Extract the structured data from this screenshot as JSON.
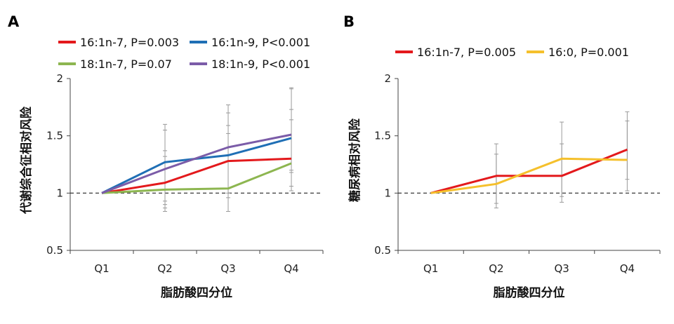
{
  "chart_data": [
    {
      "type": "line",
      "panel_label": "A",
      "categories": [
        "Q1",
        "Q2",
        "Q3",
        "Q4"
      ],
      "xlabel": "脂肪酸四分位",
      "ylabel": "代谢综合征相对风险",
      "ylim": [
        0.5,
        2
      ],
      "yticks": [
        "0.5",
        "1",
        "1.5",
        "2"
      ],
      "reference_line": 1,
      "grid": false,
      "legend_position": "top",
      "series": [
        {
          "name": "16:1n-7, P=0.003",
          "color": "#e3191c",
          "values": [
            1,
            1.09,
            1.28,
            1.3
          ]
        },
        {
          "name": "16:1n-9, P<0.001",
          "color": "#1f6fb5",
          "values": [
            1,
            1.27,
            1.33,
            1.48
          ]
        },
        {
          "name": "18:1n-7, P=0.07",
          "color": "#8db650",
          "values": [
            1,
            1.03,
            1.04,
            1.26
          ]
        },
        {
          "name": "18:1n-9, P<0.001",
          "color": "#7b5ca8",
          "values": [
            1,
            1.21,
            1.4,
            1.51
          ]
        }
      ],
      "error_bars": [
        {
          "x": "Q2",
          "low": [
            0.84,
            0.87,
            0.9,
            0.93
          ],
          "high": [
            1.6,
            1.55,
            1.37,
            1.32
          ]
        },
        {
          "x": "Q3",
          "low": [
            0.84,
            0.96,
            1.0,
            1.04
          ],
          "high": [
            1.77,
            1.7,
            1.59,
            1.52
          ]
        },
        {
          "x": "Q4",
          "low": [
            1.02,
            1.06,
            1.18,
            1.2
          ],
          "high": [
            1.92,
            1.91,
            1.73,
            1.64
          ]
        }
      ]
    },
    {
      "type": "line",
      "panel_label": "B",
      "categories": [
        "Q1",
        "Q2",
        "Q3",
        "Q4"
      ],
      "xlabel": "脂肪酸四分位",
      "ylabel": "糖尿病相对风险",
      "ylim": [
        0.5,
        2
      ],
      "yticks": [
        "0.5",
        "1",
        "1.5",
        "2"
      ],
      "reference_line": 1,
      "grid": false,
      "legend_position": "top",
      "series": [
        {
          "name": "16:1n-7, P=0.005",
          "color": "#e3191c",
          "values": [
            1,
            1.15,
            1.15,
            1.38
          ]
        },
        {
          "name": "16:0, P=0.001",
          "color": "#f5c02c",
          "values": [
            1,
            1.08,
            1.3,
            1.29
          ]
        }
      ],
      "error_bars": [
        {
          "x": "Q2",
          "low": [
            0.87,
            0.91
          ],
          "high": [
            1.43,
            1.34
          ]
        },
        {
          "x": "Q3",
          "low": [
            0.92,
            0.97
          ],
          "high": [
            1.62,
            1.43
          ]
        },
        {
          "x": "Q4",
          "low": [
            1.02,
            1.12
          ],
          "high": [
            1.71,
            1.63
          ]
        }
      ]
    }
  ]
}
